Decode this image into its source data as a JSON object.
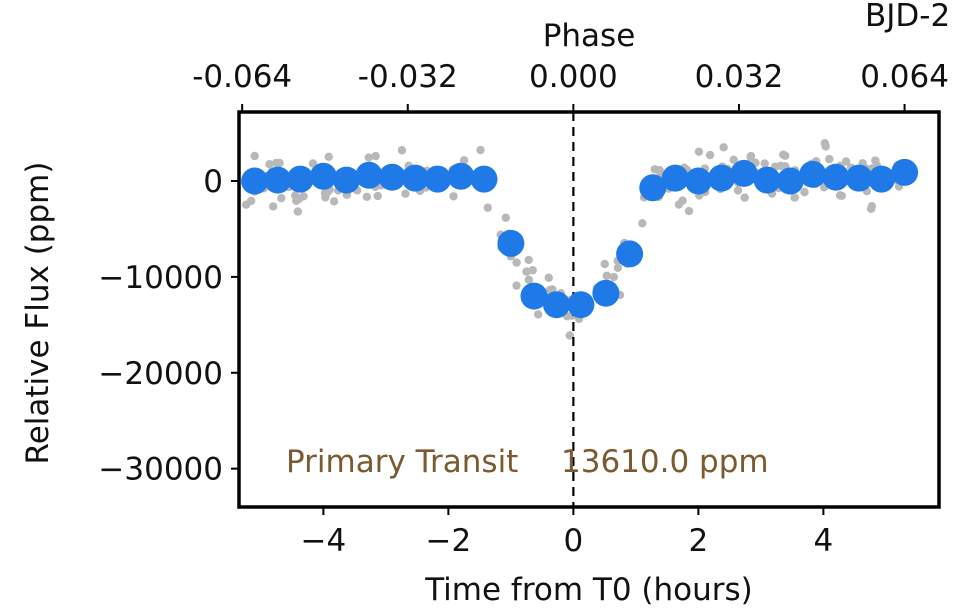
{
  "chart_data": {
    "type": "scatter",
    "xlabel": "Time from T0 (hours)",
    "ylabel": "Relative Flux (ppm)",
    "top_axis_label": "Phase",
    "corner_label": "BJD-2",
    "xlim": [
      -5.35,
      5.85
    ],
    "ylim": [
      -34000,
      7200
    ],
    "x_ticks": [
      -4,
      -2,
      0,
      2,
      4
    ],
    "x_tick_labels": [
      "−4",
      "−2",
      "0",
      "2",
      "4"
    ],
    "y_ticks": [
      0,
      -10000,
      -20000,
      -30000
    ],
    "y_tick_labels": [
      "0",
      "−10000",
      "−20000",
      "−30000"
    ],
    "phase_ticks": [
      -0.064,
      -0.032,
      0.0,
      0.032,
      0.064
    ],
    "phase_tick_labels": [
      "-0.064",
      "-0.032",
      "0.000",
      "0.032",
      "0.064"
    ],
    "hours_per_phase": 82.8,
    "annotation_label": "Primary Transit",
    "annotation_value": "13610.0 ppm",
    "colors": {
      "binned": "#1f7ae8",
      "raw": "#b8b8b8",
      "annotation": "#7a5a2e",
      "frame": "#000000"
    },
    "series": [
      {
        "values": [
          {
            "x": -5.1,
            "y": 0
          },
          {
            "x": -4.73,
            "y": 100
          },
          {
            "x": -4.37,
            "y": 200
          },
          {
            "x": -4.0,
            "y": 500
          },
          {
            "x": -3.63,
            "y": 100
          },
          {
            "x": -3.27,
            "y": 600
          },
          {
            "x": -2.9,
            "y": 400
          },
          {
            "x": -2.53,
            "y": 300
          },
          {
            "x": -2.17,
            "y": 200
          },
          {
            "x": -1.8,
            "y": 500
          },
          {
            "x": -1.43,
            "y": 200
          },
          {
            "x": -1.0,
            "y": -6500
          },
          {
            "x": -0.63,
            "y": -12000
          },
          {
            "x": -0.27,
            "y": -12900
          },
          {
            "x": 0.12,
            "y": -12900
          },
          {
            "x": 0.52,
            "y": -11700
          },
          {
            "x": 0.9,
            "y": -7600
          },
          {
            "x": 1.27,
            "y": -700
          },
          {
            "x": 1.63,
            "y": 300
          },
          {
            "x": 2.0,
            "y": 0
          },
          {
            "x": 2.37,
            "y": 300
          },
          {
            "x": 2.73,
            "y": 800
          },
          {
            "x": 3.1,
            "y": 100
          },
          {
            "x": 3.47,
            "y": 0
          },
          {
            "x": 3.83,
            "y": 700
          },
          {
            "x": 4.2,
            "y": 400
          },
          {
            "x": 4.57,
            "y": 300
          },
          {
            "x": 4.93,
            "y": 200
          },
          {
            "x": 5.3,
            "y": 900
          }
        ]
      }
    ]
  }
}
